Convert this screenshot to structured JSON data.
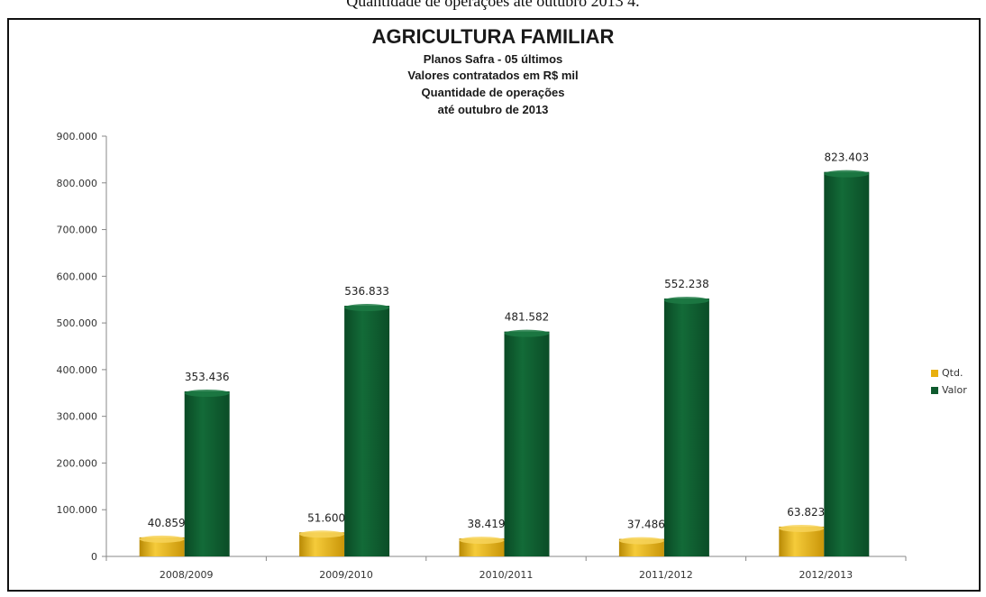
{
  "caption": "Quantidade de operações até outubro 2013 4.",
  "chart_data": {
    "type": "bar",
    "title": "AGRICULTURA FAMILIAR",
    "subtitle": [
      "Planos Safra - 05 últimos",
      "Valores contratados em R$ mil",
      "Quantidade de operações",
      "até outubro de 2013"
    ],
    "categories": [
      "2008/2009",
      "2009/2010",
      "2010/2011",
      "2011/2012",
      "2012/2013"
    ],
    "series": [
      {
        "name": "Qtd.",
        "values": [
          40859,
          51600,
          38419,
          37486,
          63823
        ],
        "labels": [
          "40.859",
          "51.600",
          "38.419",
          "37.486",
          "63.823"
        ],
        "color": "#e8b00f"
      },
      {
        "name": "Valor",
        "values": [
          353436,
          536833,
          481582,
          552238,
          823403
        ],
        "labels": [
          "353.436",
          "536.833",
          "481.582",
          "552.238",
          "823.403"
        ],
        "color": "#0e5a2e"
      }
    ],
    "yticks": [
      "0",
      "100.000",
      "200.000",
      "300.000",
      "400.000",
      "500.000",
      "600.000",
      "700.000",
      "800.000",
      "900.000"
    ],
    "ylim": [
      0,
      900000
    ],
    "grid": false,
    "legend": "right"
  }
}
